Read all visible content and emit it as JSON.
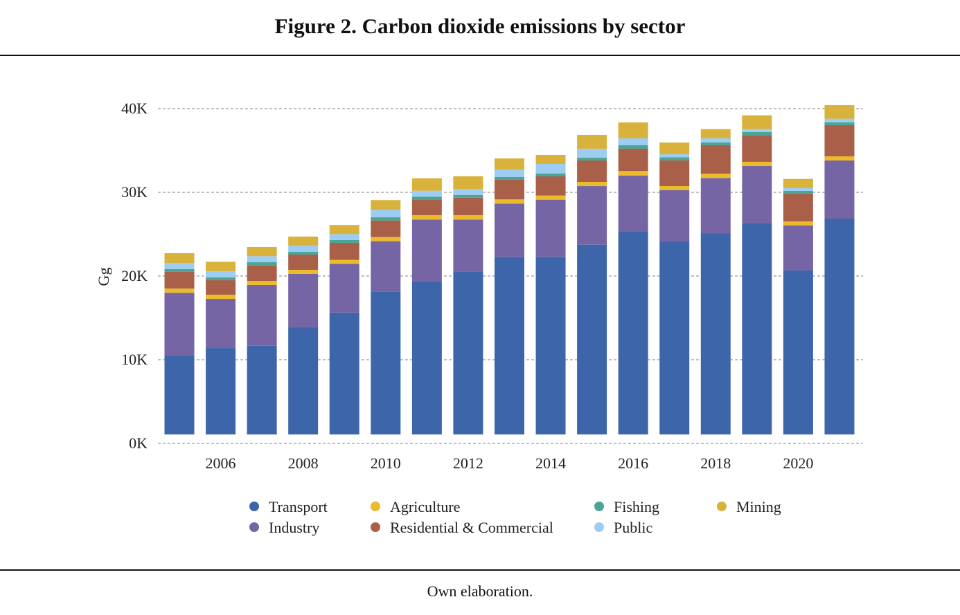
{
  "title": "Figure 2. Carbon dioxide emissions by sector",
  "source": "Own elaboration.",
  "chart_data": {
    "type": "bar",
    "stacked": true,
    "ylabel": "Gg",
    "xlabel": "",
    "ylim": [
      0,
      40000
    ],
    "yticks": [
      0,
      10000,
      20000,
      30000,
      40000
    ],
    "ytick_labels": [
      "0K",
      "10K",
      "20K",
      "30K",
      "40K"
    ],
    "x_tick_labels": [
      "2006",
      "2008",
      "2010",
      "2012",
      "2014",
      "2016",
      "2018",
      "2020"
    ],
    "grid": "horizontal dashed",
    "legend_position": "bottom",
    "categories": [
      "2005",
      "2006",
      "2007",
      "2008",
      "2009",
      "2010",
      "2011",
      "2012",
      "2013",
      "2014",
      "2015",
      "2016",
      "2017",
      "2018",
      "2019",
      "2020",
      "2021"
    ],
    "series": [
      {
        "name": "Transport",
        "color": "#3d66aa",
        "values": [
          10500,
          11400,
          11680,
          13880,
          15640,
          18160,
          19400,
          20500,
          22260,
          22260,
          23740,
          25290,
          24130,
          25120,
          26280,
          20660,
          26860
        ]
      },
      {
        "name": "Industry",
        "color": "#7565a5",
        "values": [
          7500,
          5870,
          7250,
          6370,
          5820,
          6000,
          7350,
          6250,
          6390,
          6860,
          7000,
          6720,
          6120,
          6590,
          6860,
          5370,
          6940
        ]
      },
      {
        "name": "Agriculture",
        "color": "#ebbb2a",
        "values": [
          500,
          500,
          490,
          490,
          470,
          490,
          520,
          520,
          500,
          490,
          500,
          530,
          490,
          520,
          500,
          500,
          500
        ]
      },
      {
        "name": "Residential & Commercial",
        "color": "#aa5f48",
        "values": [
          2000,
          1730,
          1840,
          1820,
          2040,
          1990,
          1820,
          2090,
          2340,
          2290,
          2560,
          2670,
          3090,
          3390,
          3190,
          3300,
          3720
        ]
      },
      {
        "name": "Fishing",
        "color": "#4ba594",
        "values": [
          330,
          330,
          390,
          330,
          330,
          380,
          390,
          330,
          330,
          360,
          330,
          410,
          360,
          330,
          360,
          340,
          350
        ]
      },
      {
        "name": "Public",
        "color": "#9dcdf2",
        "values": [
          740,
          730,
          720,
          750,
          710,
          910,
          710,
          720,
          880,
          1130,
          1080,
          830,
          360,
          500,
          360,
          330,
          420
        ]
      },
      {
        "name": "Mining",
        "color": "#d8b23a",
        "values": [
          1160,
          1140,
          1100,
          1070,
          1090,
          1140,
          1490,
          1520,
          1350,
          1070,
          1650,
          1900,
          1400,
          1100,
          1650,
          1100,
          1620
        ]
      }
    ],
    "legend_layout": [
      [
        "Transport",
        "Agriculture",
        "Fishing",
        "Mining"
      ],
      [
        "Industry",
        "Residential & Commercial",
        "Public"
      ]
    ]
  }
}
